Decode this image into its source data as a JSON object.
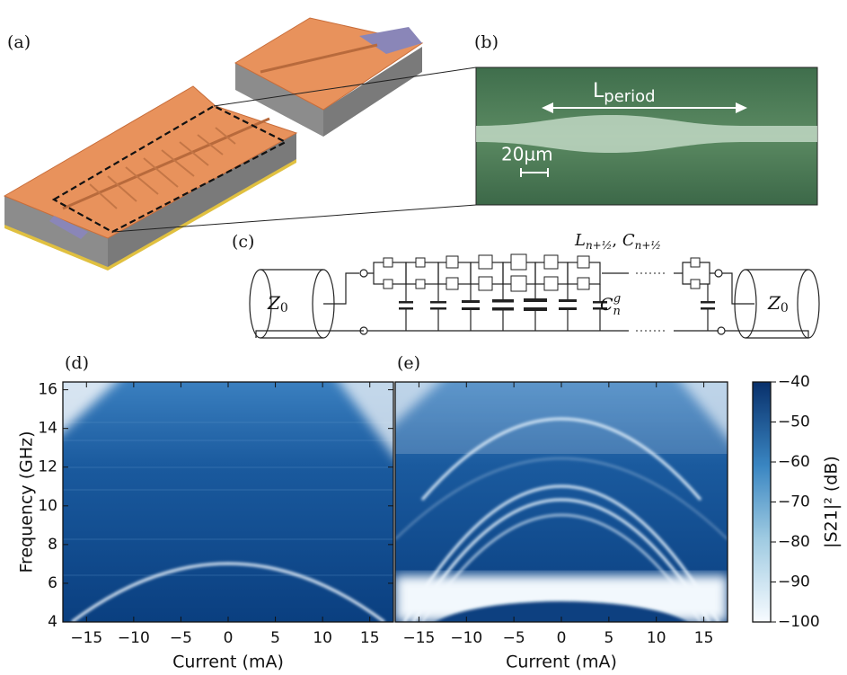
{
  "panel_labels": {
    "a": "(a)",
    "b": "(b)",
    "c": "(c)",
    "d": "(d)",
    "e": "(e)"
  },
  "micrograph": {
    "period_label": "L",
    "period_subscript": "period",
    "scale_bar": "20µm"
  },
  "circuit": {
    "port_left": "Z",
    "port_left_subscript": "0",
    "port_right": "Z",
    "port_right_subscript": "0",
    "cell_label_l": "L",
    "cell_label_l_subscript": "n+½",
    "cell_label_sep": ", ",
    "cell_label_c": "C",
    "cell_label_c_subscript": "n+½",
    "ground_cap": "C",
    "ground_cap_subscript": "n",
    "ground_cap_superscript": "g"
  },
  "chart_data": [
    {
      "type": "heatmap",
      "xlabel": "Current (mA)",
      "ylabel": "Frequency (GHz)",
      "xlim": [
        -17.5,
        17.5
      ],
      "ylim": [
        4,
        16.4
      ],
      "xticks": [
        {
          "value": -15,
          "label": "−15"
        },
        {
          "value": -10,
          "label": "−10"
        },
        {
          "value": -5,
          "label": "−5"
        },
        0,
        5,
        10,
        15
      ],
      "yticks": [
        4,
        6,
        8,
        10,
        12,
        14,
        16
      ]
    },
    {
      "type": "heatmap",
      "xlabel": "Current (mA)",
      "xlim": [
        -17.5,
        17.5
      ],
      "ylim": [
        4,
        16.4
      ],
      "xticks": [
        {
          "value": -15,
          "label": "−15"
        },
        {
          "value": -10,
          "label": "−10"
        },
        {
          "value": -5,
          "label": "−5"
        },
        0,
        5,
        10,
        15
      ]
    },
    {
      "type": "colorbar",
      "ylabel": "|S21|² (dB)",
      "ylim": [
        -100,
        -40
      ],
      "yticks": [
        {
          "value": -100,
          "label": "−100"
        },
        {
          "value": -90,
          "label": "−90"
        },
        {
          "value": -80,
          "label": "−80"
        },
        {
          "value": -70,
          "label": "−70"
        },
        {
          "value": -60,
          "label": "−60"
        },
        {
          "value": -50,
          "label": "−50"
        },
        {
          "value": -40,
          "label": "−40"
        }
      ]
    }
  ]
}
